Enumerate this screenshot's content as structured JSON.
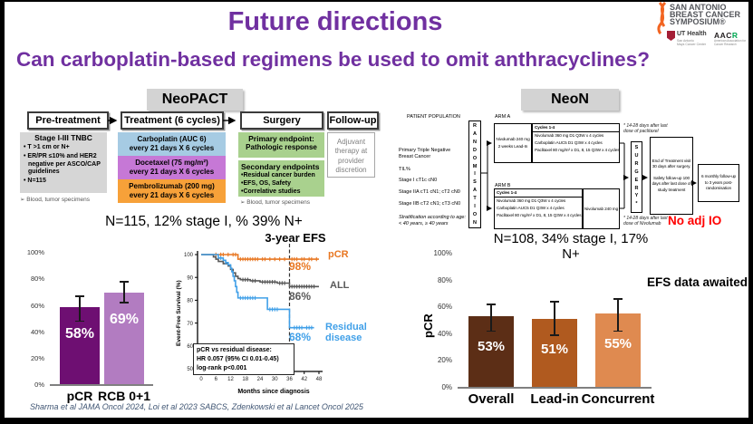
{
  "slide": {
    "title": "Future directions",
    "subtitle": "Can carboplatin-based regimens be used to omit anthracyclines?",
    "citation": "Sharma et al JAMA Oncol 2024, Loi et al 2023 SABCS, Zdenkowski et al Lancet Oncol 2025",
    "accent_purple": "#7030A0"
  },
  "logos": {
    "sabcs_line1": "SAN ANTONIO",
    "sabcs_line2": "BREAST CANCER",
    "sabcs_line3": "SYMPOSIUM®",
    "ribbon_color": "#F26522",
    "ut_health": "UT Health",
    "ut_sub1": "San Antonio",
    "ut_sub2": "Mays Cancer Center",
    "aacr_black": "AAC",
    "aacr_green": "R",
    "aacr_sub": "American Association for Cancer Research"
  },
  "neopact": {
    "title": "NeoPACT",
    "columns": [
      "Pre-treatment",
      "Treatment (6 cycles)",
      "Surgery",
      "Follow-up"
    ],
    "pretreatment": {
      "heading": "Stage I-III TNBC",
      "bullets": [
        "T >1 cm or N+",
        "ER/PR ≤10% and HER2 negative per ASCO/CAP guidelines",
        "N=115"
      ],
      "note": "➢ Blood, tumor specimens"
    },
    "treatment_rows": [
      {
        "line1": "Carboplatin (AUC 6)",
        "line2": "every 21 days X 6 cycles",
        "color": "#A6CBE3"
      },
      {
        "line1": "Docetaxel (75 mg/m²)",
        "line2": "every 21 days X 6 cycles",
        "color": "#C678D6"
      },
      {
        "line1": "Pembrolizumab (200 mg)",
        "line2": "every 21 days X 6 cycles",
        "color": "#F7A139"
      }
    ],
    "surgery": {
      "primary_line1": "Primary endpoint:",
      "primary_line2": "Pathologic response",
      "secondary_heading": "Secondary endpoints",
      "secondary_bullets": [
        "Residual cancer burden",
        "EFS, OS, Safety",
        "Correlative studies"
      ],
      "note": "➢ Blood, tumor specimens"
    },
    "followup_text": "Adjuvant therapy at provider discretion",
    "n_line": "N=115, 12% stage I, % 39% N+"
  },
  "neon": {
    "title": "NeoN",
    "patient_population_header": "PATIENT POPULATION",
    "patient_lines": [
      "Primary Triple Negative Breast Cancer",
      "TIL%",
      "Stage I cT1c cN0",
      "Stage IIA cT1 cN1; cT2 cN0",
      "Stage IIB cT2 cN1; cT3 cN0",
      "Stratification according to age: < 40 years, ≥ 40 years"
    ],
    "randomisation": "RANDOMISATION",
    "arm_a_label": "ARM A",
    "arm_a_leadin1": "Nivolumab 240 mg",
    "arm_a_leadin2": "2 weeks Lead-In",
    "cycles_heading": "Cycles 1-4",
    "arm_a_lines": [
      "Nivolumab 360 mg D1 Q3W x 4 cycles",
      "Carboplatin AUC5 D1 Q3W x 4 cycles",
      "Paclitaxel 80 mg/m² x D1, 8, 15 Q3W x 4 cycles"
    ],
    "arm_b_label": "ARM B",
    "arm_b_lines": [
      "Nivolumab 360 mg D1 Q3W x 4 cycles",
      "Carboplatin AUC5 D1 Q3W x 4 cycles",
      "Paclitaxel 80 mg/m² x D1, 8, 15 Q3W x 4 cycles"
    ],
    "arm_b_niv": "Nivolumab 240 mg",
    "note_top": "* 14-28 days after last dose of paclitaxel",
    "surgery_vertical": "SURGERY*",
    "eot_text1": "End of Treatment visit 30 days after surgery.",
    "eot_text2": "Safety follow-up 100 days after last dose of study treatment",
    "followup_box": "6 monthly follow-up to 3 years post-randomisation",
    "note_bottom": "* 14-28 days after last dose of Nivolumab",
    "no_adj_io": "No adj IO",
    "n_line": "N=108, 34% stage I, 17% N+",
    "efs_note": "EFS data awaited"
  },
  "chart_data": [
    {
      "id": "neopact-pcr-bar",
      "type": "bar",
      "categories": [
        "pCR",
        "RCB 0+1"
      ],
      "values": [
        58,
        69
      ],
      "value_labels": [
        "58%",
        "69%"
      ],
      "error_low": [
        48,
        62
      ],
      "error_high": [
        67,
        78
      ],
      "bar_colors": [
        "#6E0F72",
        "#B27CC1"
      ],
      "ylabel": "",
      "ylim": [
        0,
        100
      ],
      "yticks": [
        "0%",
        "20%",
        "40%",
        "60%",
        "80%",
        "100%"
      ]
    },
    {
      "id": "neopact-efs-km",
      "type": "line",
      "title": "3-year EFS",
      "xlabel": "Months since diagnosis",
      "ylabel": "Event-Free Survival (%)",
      "xlim": [
        0,
        48
      ],
      "ylim": [
        50,
        100
      ],
      "xticks": [
        0,
        6,
        12,
        18,
        24,
        30,
        36,
        42,
        48
      ],
      "yticks": [
        50,
        60,
        70,
        80,
        90,
        100
      ],
      "ref_line_x": 36,
      "series": [
        {
          "name": "pCR",
          "color": "#E87722",
          "end_label": "98%",
          "steps": [
            [
              0,
              100
            ],
            [
              15,
              98
            ],
            [
              48,
              98
            ]
          ],
          "censors": [
            [
              6,
              100
            ],
            [
              8,
              100
            ],
            [
              9,
              100
            ],
            [
              11,
              100
            ],
            [
              13,
              100
            ],
            [
              14,
              100
            ],
            [
              16,
              98
            ],
            [
              17,
              98
            ],
            [
              18,
              98
            ],
            [
              19,
              98
            ],
            [
              20,
              98
            ],
            [
              21,
              98
            ],
            [
              22,
              98
            ],
            [
              23,
              98
            ],
            [
              25,
              98
            ],
            [
              26,
              98
            ],
            [
              28,
              98
            ],
            [
              30,
              98
            ],
            [
              32,
              98
            ],
            [
              34,
              98
            ],
            [
              37,
              98
            ],
            [
              38,
              98
            ],
            [
              39,
              98
            ],
            [
              41,
              98
            ],
            [
              42,
              98
            ],
            [
              44,
              98
            ],
            [
              45,
              98
            ],
            [
              47,
              98
            ]
          ]
        },
        {
          "name": "ALL",
          "color": "#595959",
          "end_label": "86%",
          "steps": [
            [
              0,
              100
            ],
            [
              5,
              99
            ],
            [
              6,
              98
            ],
            [
              7,
              97
            ],
            [
              9,
              96
            ],
            [
              11,
              95
            ],
            [
              12,
              93.5
            ],
            [
              13,
              92
            ],
            [
              14,
              90.5
            ],
            [
              15,
              89.5
            ],
            [
              16,
              89
            ],
            [
              20,
              88.5
            ],
            [
              24,
              88
            ],
            [
              31,
              87.5
            ],
            [
              36,
              86
            ],
            [
              48,
              86
            ]
          ],
          "censors": [
            [
              17,
              89
            ],
            [
              18,
              89
            ],
            [
              19,
              89
            ],
            [
              21,
              88.5
            ],
            [
              22,
              88.5
            ],
            [
              25,
              88
            ],
            [
              26,
              88
            ],
            [
              27,
              88
            ],
            [
              28,
              88
            ],
            [
              29,
              88
            ],
            [
              30,
              88
            ],
            [
              32,
              87.5
            ],
            [
              33,
              87.5
            ],
            [
              34,
              87.5
            ],
            [
              37,
              86
            ],
            [
              38,
              86
            ],
            [
              39,
              86
            ],
            [
              40,
              86
            ],
            [
              41,
              86
            ],
            [
              42,
              86
            ],
            [
              43,
              86
            ],
            [
              44,
              86
            ],
            [
              45,
              86
            ],
            [
              46,
              86
            ]
          ]
        },
        {
          "name": "Residual disease",
          "color": "#41A0E8",
          "end_label": "68%",
          "steps": [
            [
              0,
              100
            ],
            [
              7,
              98.5
            ],
            [
              9,
              97.5
            ],
            [
              10,
              96.5
            ],
            [
              11,
              95.5
            ],
            [
              12,
              94
            ],
            [
              12.5,
              92.5
            ],
            [
              13,
              90.5
            ],
            [
              13.5,
              88.5
            ],
            [
              14,
              86
            ],
            [
              14.5,
              83.5
            ],
            [
              15,
              81
            ],
            [
              26.5,
              81
            ],
            [
              27,
              76
            ],
            [
              35.5,
              76
            ],
            [
              36,
              68
            ],
            [
              46,
              68
            ]
          ],
          "censors": [
            [
              8,
              98.5
            ],
            [
              10,
              96.5
            ],
            [
              16,
              81
            ],
            [
              17,
              81
            ],
            [
              18,
              81
            ],
            [
              19,
              81
            ],
            [
              20,
              81
            ],
            [
              21,
              81
            ],
            [
              22,
              81
            ],
            [
              28,
              76
            ],
            [
              29,
              76
            ],
            [
              30,
              76
            ],
            [
              31,
              76
            ],
            [
              38,
              68
            ],
            [
              39,
              68
            ],
            [
              40,
              68
            ],
            [
              41,
              68
            ],
            [
              43,
              68
            ],
            [
              44,
              68
            ],
            [
              45,
              68
            ]
          ]
        }
      ],
      "annotation_box": [
        "pCR vs residual disease:",
        "HR 0.057 (95% CI 0.01-0.45)",
        "log-rank p<0.001"
      ]
    },
    {
      "id": "neon-pcr-bar",
      "type": "bar",
      "categories": [
        "Overall",
        "Lead-in",
        "Concurrent"
      ],
      "values": [
        53,
        51,
        55
      ],
      "value_labels": [
        "53%",
        "51%",
        "55%"
      ],
      "error_low": [
        42,
        39,
        42
      ],
      "error_high": [
        62,
        64,
        66
      ],
      "bar_colors": [
        "#5C2E16",
        "#B05A1F",
        "#DF8A50"
      ],
      "ylabel": "pCR",
      "ylim": [
        0,
        100
      ],
      "yticks": [
        "0%",
        "20%",
        "40%",
        "60%",
        "80%",
        "100%"
      ]
    }
  ]
}
